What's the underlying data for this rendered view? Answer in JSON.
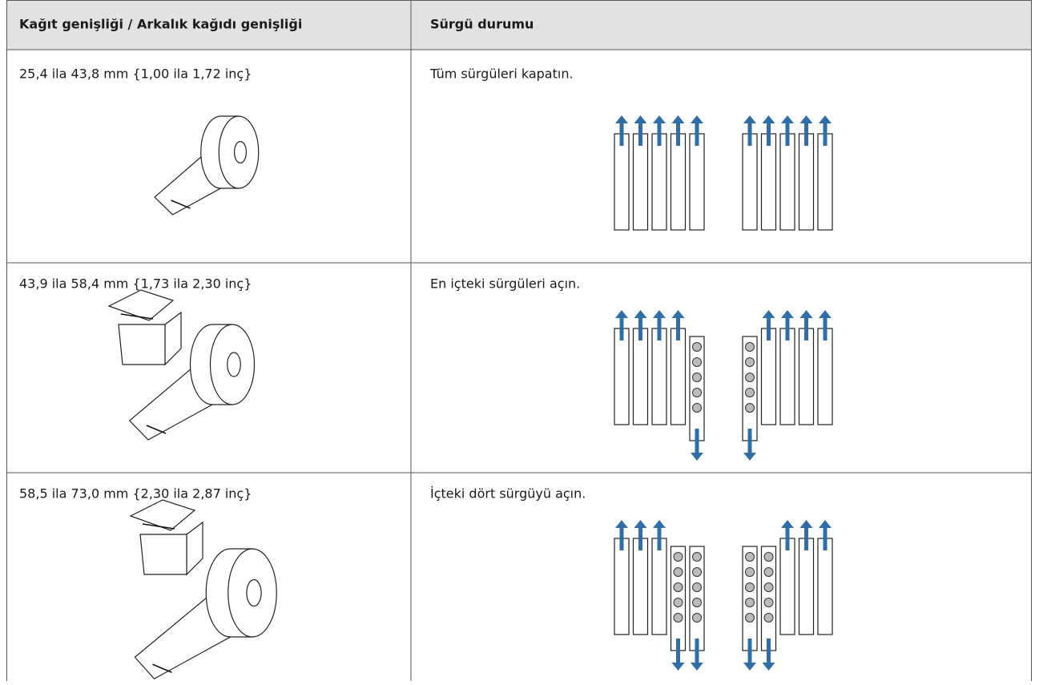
{
  "table": {
    "header": [
      "Kağıt genişliği / Arkalık kağıdı genişliği",
      "Sürgü durumu"
    ],
    "rows": [
      [
        "25,4 ila 43,8 mm {1,00 ila 1,72 inç}",
        "Tüm sürgüleri kapatın."
      ],
      [
        "43,9 ila 58,4 mm {1,73 ila 2,30 inç}",
        "En içteki sürgüleri açın."
      ],
      [
        "58,5 ila 73,0 mm {2,30 ila 2,87 inç}",
        "İçteki dört sürgüyü açın."
      ]
    ]
  }
}
